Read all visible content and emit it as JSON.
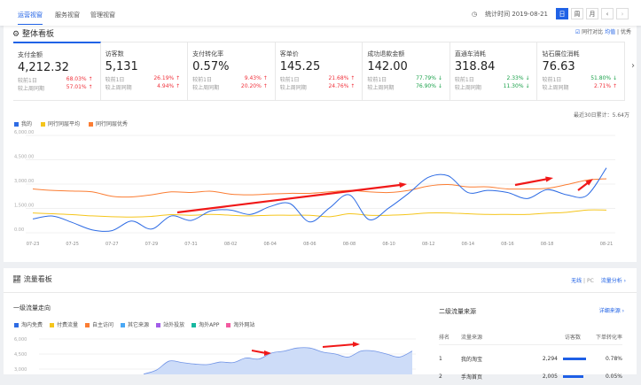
{
  "header": {
    "tabs": [
      "运营视窗",
      "服务视窗",
      "管理视窗"
    ],
    "stat_time": "统计时间 2019-08-21",
    "period_buttons": [
      "日",
      "周",
      "月"
    ],
    "prev": "‹",
    "next": "›"
  },
  "overview": {
    "title": "整体看板",
    "compare_label": "同行对比",
    "compare_avg": "均值",
    "compare_sep": "|",
    "compare_best": "优秀",
    "metrics": [
      {
        "label": "支付金额",
        "value": "4,212.32",
        "d1_label": "较前1日",
        "d1": "68.03%",
        "d1_dir": "up",
        "w_label": "较上周同期",
        "w": "57.01%",
        "w_dir": "up"
      },
      {
        "label": "访客数",
        "value": "5,131",
        "d1_label": "较前1日",
        "d1": "26.19%",
        "d1_dir": "up",
        "w_label": "较上周同期",
        "w": "4.94%",
        "w_dir": "up"
      },
      {
        "label": "支付转化率",
        "value": "0.57%",
        "d1_label": "较前1日",
        "d1": "9.43%",
        "d1_dir": "up",
        "w_label": "较上周同期",
        "w": "20.20%",
        "w_dir": "up"
      },
      {
        "label": "客单价",
        "value": "145.25",
        "d1_label": "较前1日",
        "d1": "21.68%",
        "d1_dir": "up",
        "w_label": "较上周同期",
        "w": "24.76%",
        "w_dir": "up"
      },
      {
        "label": "成功退款金额",
        "value": "142.00",
        "d1_label": "较前1日",
        "d1": "77.79%",
        "d1_dir": "down",
        "w_label": "较上周同期",
        "w": "76.90%",
        "w_dir": "down"
      },
      {
        "label": "直通车消耗",
        "value": "318.84",
        "d1_label": "较前1日",
        "d1": "2.33%",
        "d1_dir": "down",
        "w_label": "较上周同期",
        "w": "11.30%",
        "w_dir": "down"
      },
      {
        "label": "钻石展位消耗",
        "value": "76.63",
        "d1_label": "较前1日",
        "d1": "51.80%",
        "d1_dir": "down",
        "w_label": "较上周同期",
        "w": "2.71%",
        "w_dir": "up"
      }
    ],
    "total": "最近30日累计：5.64万"
  },
  "chart_data": [
    {
      "type": "line",
      "ylim": [
        0,
        6000
      ],
      "grid": true,
      "legend": "top-left",
      "yticks": [
        "0.00",
        "1,500.00",
        "3,000.00",
        "4,500.00",
        "6,000.00"
      ],
      "xticks": [
        "07-23",
        "07-25",
        "07-27",
        "07-29",
        "07-31",
        "08-02",
        "08-04",
        "08-06",
        "08-08",
        "08-10",
        "08-12",
        "08-14",
        "08-16",
        "08-18",
        "08-21"
      ],
      "x": [
        "07-23",
        "07-24",
        "07-25",
        "07-26",
        "07-27",
        "07-28",
        "07-29",
        "07-30",
        "07-31",
        "08-01",
        "08-02",
        "08-03",
        "08-04",
        "08-05",
        "08-06",
        "08-07",
        "08-08",
        "08-09",
        "08-10",
        "08-11",
        "08-12",
        "08-13",
        "08-14",
        "08-15",
        "08-16",
        "08-17",
        "08-18",
        "08-19",
        "08-20",
        "08-21"
      ],
      "series": [
        {
          "name": "我的",
          "color": "#2d6be4",
          "values": [
            850,
            1030,
            630,
            180,
            130,
            720,
            230,
            1040,
            760,
            1350,
            1400,
            1130,
            1620,
            1800,
            670,
            1530,
            2340,
            810,
            1530,
            2430,
            3420,
            3510,
            2480,
            2610,
            2480,
            2110,
            2660,
            2340,
            2290,
            4000
          ]
        },
        {
          "name": "同行同层平均",
          "color": "#f5c51b",
          "values": [
            1220,
            1170,
            1120,
            1040,
            990,
            970,
            1010,
            1120,
            1080,
            1130,
            1080,
            1040,
            1080,
            1080,
            1080,
            990,
            1170,
            1080,
            1080,
            1130,
            1220,
            1220,
            1170,
            1130,
            1130,
            1130,
            1210,
            1260,
            1400,
            1400
          ]
        },
        {
          "name": "同行同层优秀",
          "color": "#fb7d33",
          "values": [
            2700,
            2610,
            2570,
            2520,
            2250,
            2210,
            2340,
            2520,
            2480,
            2560,
            2380,
            2340,
            2390,
            2430,
            2430,
            2520,
            2610,
            2520,
            2480,
            2610,
            2880,
            2970,
            2830,
            2830,
            2700,
            2700,
            2740,
            2970,
            3240,
            3330
          ]
        }
      ]
    },
    {
      "type": "area",
      "yticks": [
        "3,000",
        "4,500",
        "6,000"
      ],
      "legend_entries": [
        {
          "name": "淘内免费",
          "color": "#2d6be4"
        },
        {
          "name": "付费流量",
          "color": "#f5c51b"
        },
        {
          "name": "自主访问",
          "color": "#fb7d33"
        },
        {
          "name": "其它来源",
          "color": "#4aa8f5"
        },
        {
          "name": "站外投放",
          "color": "#a25de8"
        },
        {
          "name": "淘外APP",
          "color": "#17b8a0"
        },
        {
          "name": "淘外网站",
          "color": "#f25aa0"
        }
      ],
      "series": [
        {
          "name": "淘内免费",
          "values": [
            2500,
            2900,
            3800,
            3650,
            3500,
            3450,
            3700,
            3650,
            4100,
            4000,
            4600,
            4800,
            5100,
            5100,
            4700,
            4500,
            4200,
            4800,
            4800,
            4500,
            4200,
            4800
          ]
        }
      ]
    }
  ],
  "traffic": {
    "title": "流量看板",
    "device_wireless": "无线",
    "device_sep": "|",
    "device_pc": "PC",
    "analysis_link": "流量分析 ›",
    "first_title": "一级流量走向",
    "second_title": "二级流量来源",
    "detail_link": "详细来源 ›",
    "table": {
      "headers": [
        "排名",
        "流量来源",
        "访客数",
        "下单转化率"
      ],
      "rows": [
        {
          "rank": "1",
          "source": "我的淘宝",
          "visitors": "2,294",
          "rate": "0.78%",
          "bar": 1.0
        },
        {
          "rank": "2",
          "source": "手淘首页",
          "visitors": "2,005",
          "rate": "0.05%",
          "bar": 0.87
        }
      ]
    }
  }
}
